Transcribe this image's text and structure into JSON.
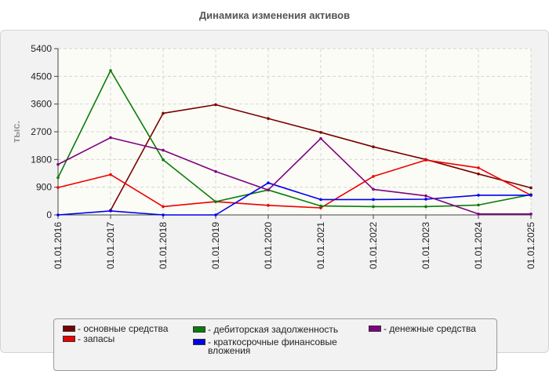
{
  "chart_data": {
    "type": "line",
    "title": "Динамика изменения активов",
    "ylabel": "тыс.",
    "ylim": [
      0,
      5400
    ],
    "yticks": [
      "0",
      "900",
      "1800",
      "2700",
      "3600",
      "4500",
      "5400"
    ],
    "categories": [
      "01.01.2016",
      "01.01.2017",
      "01.01.2018",
      "01.01.2019",
      "01.01.2020",
      "01.01.2021",
      "01.01.2022",
      "01.01.2023",
      "01.01.2024",
      "01.01.2025"
    ],
    "grid": true,
    "series": [
      {
        "name": "- основные средства",
        "color": "#7a0000",
        "values": [
          null,
          150,
          3300,
          3580,
          3130,
          2680,
          2210,
          1800,
          1330,
          880
        ]
      },
      {
        "name": "- запасы",
        "color": "#ee0000",
        "values": [
          890,
          1310,
          270,
          430,
          310,
          230,
          1250,
          1780,
          1530,
          640
        ]
      },
      {
        "name": "- дебиторская задолженность",
        "color": "#0a7d0a",
        "values": [
          1210,
          4690,
          1790,
          430,
          810,
          290,
          270,
          270,
          320,
          660
        ]
      },
      {
        "name": "- краткосрочные финансовые вложения",
        "color": "#0000ee",
        "values": [
          0,
          130,
          0,
          0,
          1040,
          500,
          500,
          510,
          640,
          640
        ]
      },
      {
        "name": "- денежные средства",
        "color": "#800080",
        "values": [
          1640,
          2510,
          2100,
          1410,
          810,
          2480,
          830,
          620,
          30,
          30
        ]
      }
    ],
    "legend_position": "bottom"
  }
}
